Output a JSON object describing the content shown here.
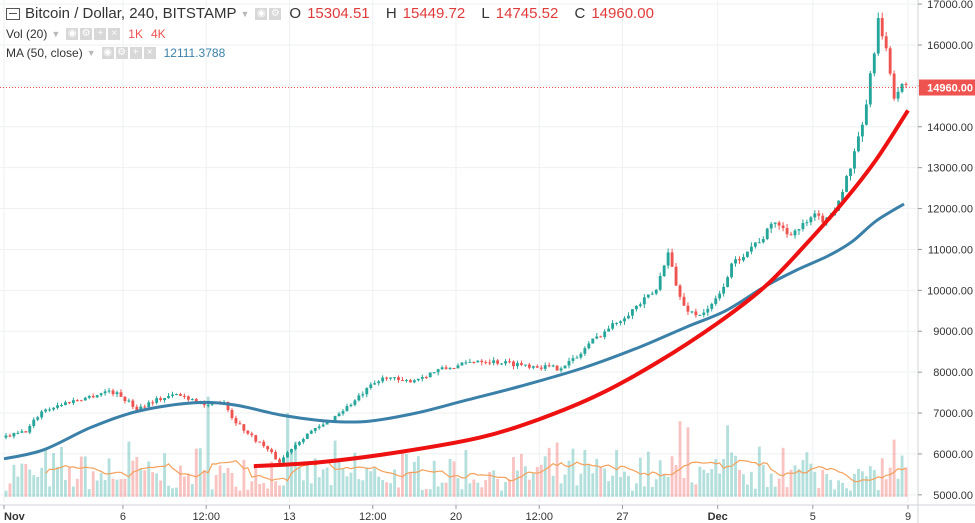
{
  "header": {
    "title": "Bitcoin / Dollar, 240, BITSTAMP",
    "ohlc": [
      {
        "k": "O",
        "v": "15304.51"
      },
      {
        "k": "H",
        "v": "15449.72"
      },
      {
        "k": "L",
        "v": "14745.52"
      },
      {
        "k": "C",
        "v": "14960.00"
      }
    ],
    "vol_label": "Vol (20)",
    "vol_values": [
      "1K",
      "4K"
    ],
    "ma_label": "MA (50, close)",
    "ma_value": "12111.3788"
  },
  "colors": {
    "up": "#26a69a",
    "down": "#ef5350",
    "ma": "#3a80a8",
    "curve": "#ee1111",
    "vol_ma": "#f5a05a",
    "price_tag": "#ef5350"
  },
  "chart_data": {
    "type": "candlestick",
    "symbol": "Bitcoin / Dollar",
    "interval": "240",
    "exchange": "BITSTAMP",
    "last_price": 14960.0,
    "last_price_label": "14960.00",
    "ylim": [
      4800,
      17100
    ],
    "y_ticks": [
      5000,
      6000,
      7000,
      8000,
      9000,
      10000,
      11000,
      12000,
      13000,
      14000,
      15000,
      16000,
      17000
    ],
    "y_tick_labels": [
      "5000.00",
      "6000.00",
      "7000.00",
      "8000.00",
      "9000.00",
      "10000.00",
      "11000.00",
      "12000.00",
      "13000.00",
      "14000.00",
      "15000.00",
      "16000.00",
      "17000.00"
    ],
    "x_ticks": [
      {
        "label": "Nov",
        "bold": true,
        "i": 0
      },
      {
        "label": "6",
        "bold": false,
        "i": 30
      },
      {
        "label": "12:00",
        "bold": false,
        "i": 51
      },
      {
        "label": "13",
        "bold": false,
        "i": 72
      },
      {
        "label": "12:00",
        "bold": false,
        "i": 93
      },
      {
        "label": "20",
        "bold": false,
        "i": 114
      },
      {
        "label": "12:00",
        "bold": false,
        "i": 135
      },
      {
        "label": "27",
        "bold": false,
        "i": 156
      },
      {
        "label": "Dec",
        "bold": true,
        "i": 180
      },
      {
        "label": "5",
        "bold": false,
        "i": 204
      },
      {
        "label": "9",
        "bold": false,
        "i": 228
      }
    ],
    "price_path": [
      [
        0,
        6400
      ],
      [
        6,
        6550
      ],
      [
        10,
        7050
      ],
      [
        16,
        7250
      ],
      [
        22,
        7400
      ],
      [
        27,
        7550
      ],
      [
        30,
        7420
      ],
      [
        34,
        7100
      ],
      [
        38,
        7300
      ],
      [
        44,
        7450
      ],
      [
        48,
        7350
      ],
      [
        52,
        7150
      ],
      [
        56,
        7300
      ],
      [
        58,
        6900
      ],
      [
        62,
        6500
      ],
      [
        66,
        6200
      ],
      [
        70,
        5800
      ],
      [
        73,
        6150
      ],
      [
        77,
        6500
      ],
      [
        81,
        6700
      ],
      [
        85,
        7000
      ],
      [
        89,
        7300
      ],
      [
        93,
        7650
      ],
      [
        97,
        7900
      ],
      [
        101,
        7750
      ],
      [
        105,
        7850
      ],
      [
        110,
        8050
      ],
      [
        115,
        8150
      ],
      [
        120,
        8300
      ],
      [
        125,
        8250
      ],
      [
        130,
        8200
      ],
      [
        135,
        8150
      ],
      [
        140,
        8100
      ],
      [
        145,
        8350
      ],
      [
        148,
        8700
      ],
      [
        152,
        9000
      ],
      [
        156,
        9300
      ],
      [
        160,
        9600
      ],
      [
        165,
        10000
      ],
      [
        168,
        11000
      ],
      [
        170,
        10100
      ],
      [
        172,
        9600
      ],
      [
        175,
        9400
      ],
      [
        178,
        9500
      ],
      [
        181,
        9900
      ],
      [
        184,
        10600
      ],
      [
        188,
        11000
      ],
      [
        192,
        11300
      ],
      [
        195,
        11700
      ],
      [
        198,
        11400
      ],
      [
        201,
        11500
      ],
      [
        205,
        11800
      ],
      [
        208,
        11700
      ],
      [
        211,
        12200
      ],
      [
        214,
        13000
      ],
      [
        217,
        14000
      ],
      [
        219,
        15200
      ],
      [
        221,
        16600
      ],
      [
        223,
        15800
      ],
      [
        225,
        14800
      ],
      [
        227,
        14960
      ]
    ],
    "candle_count": 228,
    "series": [
      {
        "name": "MA (50, close)",
        "value_label": "12111.3788",
        "color": "#3a80a8",
        "points": [
          [
            0,
            5880
          ],
          [
            10,
            6100
          ],
          [
            22,
            6650
          ],
          [
            34,
            7050
          ],
          [
            48,
            7250
          ],
          [
            58,
            7200
          ],
          [
            70,
            6950
          ],
          [
            82,
            6800
          ],
          [
            92,
            6800
          ],
          [
            104,
            7000
          ],
          [
            116,
            7300
          ],
          [
            130,
            7650
          ],
          [
            146,
            8100
          ],
          [
            160,
            8600
          ],
          [
            172,
            9100
          ],
          [
            182,
            9500
          ],
          [
            192,
            10100
          ],
          [
            200,
            10500
          ],
          [
            208,
            10850
          ],
          [
            214,
            11200
          ],
          [
            220,
            11700
          ],
          [
            227,
            12111
          ]
        ]
      },
      {
        "name": "curve",
        "color": "#ee1111",
        "points": [
          [
            63,
            5700
          ],
          [
            80,
            5800
          ],
          [
            100,
            6050
          ],
          [
            120,
            6400
          ],
          [
            135,
            6850
          ],
          [
            150,
            7450
          ],
          [
            165,
            8250
          ],
          [
            180,
            9200
          ],
          [
            192,
            10100
          ],
          [
            202,
            11100
          ],
          [
            212,
            12200
          ],
          [
            220,
            13200
          ],
          [
            228,
            14400
          ]
        ]
      }
    ],
    "volume": {
      "label": "Vol (20)",
      "scale_labels": [
        "1K",
        "4K"
      ],
      "base_price": 4950,
      "height_range": [
        150,
        1400
      ],
      "tall_bars": [
        [
          31,
          1350
        ],
        [
          51,
          2450
        ],
        [
          71,
          2050
        ],
        [
          130,
          1050
        ],
        [
          170,
          1850
        ],
        [
          172,
          1700
        ],
        [
          182,
          1750
        ],
        [
          196,
          1200
        ],
        [
          224,
          1400
        ]
      ]
    },
    "xlabel": "",
    "ylabel": ""
  }
}
